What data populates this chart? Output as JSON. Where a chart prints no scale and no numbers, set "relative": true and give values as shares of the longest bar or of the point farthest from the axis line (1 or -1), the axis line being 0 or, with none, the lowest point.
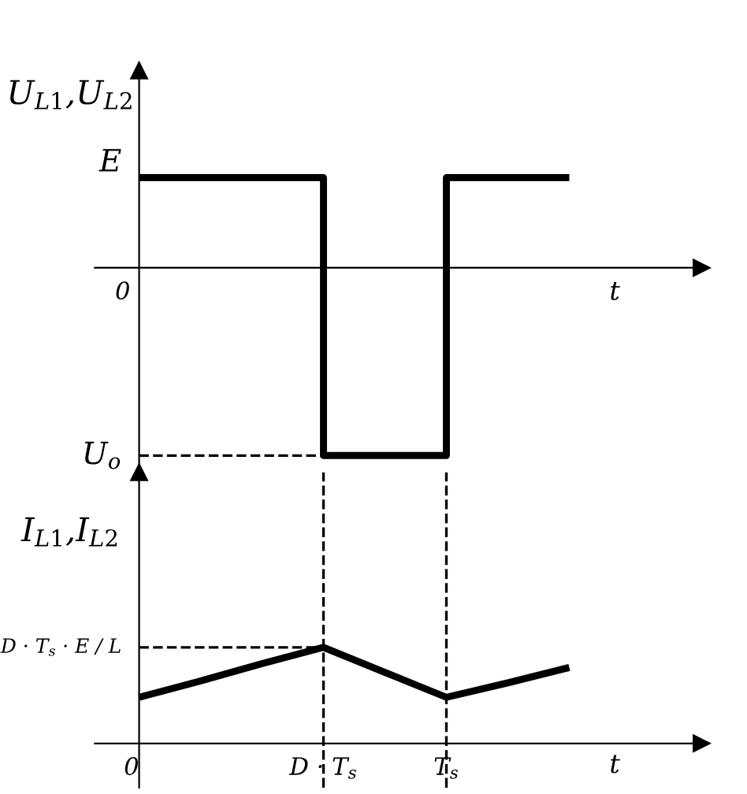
{
  "chart_data": [
    {
      "type": "step",
      "ylabel": "U$_{L1}$,U$_{L2}$",
      "xlabel": "t",
      "relative": true,
      "categories": [
        null,
        null,
        null,
        null,
        null,
        null,
        null,
        null
      ],
      "series": [
        {
          "color": "#000000",
          "values": [
            0.48,
            0.48,
            0.48,
            -1,
            -1,
            0.48,
            0.48,
            0.48
          ]
        }
      ],
      "annotations": [
        "E",
        "0"
      ],
      "ref_lines": [
        {
          "axis": "y",
          "value": -1,
          "label": "U$_{o}$",
          "line_style": "dashed",
          "color": "#000000"
        }
      ],
      "marker": "none",
      "line_style": "solid"
    },
    {
      "type": "line",
      "ylabel": "I$_{L1}$,I$_{L2}$",
      "xlabel": "t",
      "relative": true,
      "categories": [
        "0",
        null,
        null,
        "D · T$_{s}$",
        null,
        "T$_{s}$",
        null,
        null
      ],
      "series": [
        {
          "color": "#000000",
          "values": [
            0.48,
            0.65,
            0.83,
            1,
            0.74,
            0.48,
            0.63,
            0.79
          ]
        }
      ],
      "ref_lines": [
        {
          "axis": "y",
          "value": 1,
          "label": "D · T$_{s}$ · E / L",
          "line_style": "dashed",
          "color": "#000000"
        },
        {
          "axis": "x",
          "value": "D · T$_{s}$",
          "line_style": "dashed",
          "color": "#000000"
        },
        {
          "axis": "x",
          "value": "T$_{s}$",
          "line_style": "dashed",
          "color": "#000000"
        }
      ],
      "marker": "none",
      "line_style": "solid"
    }
  ]
}
